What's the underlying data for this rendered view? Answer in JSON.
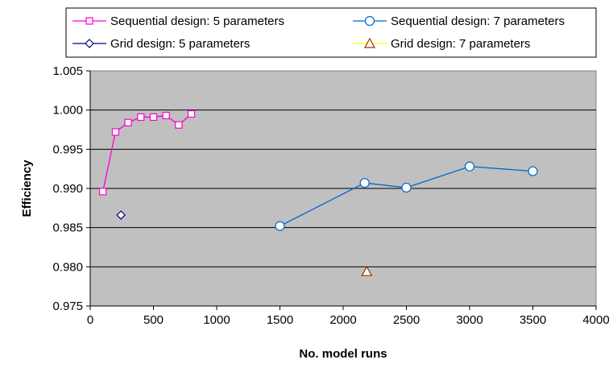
{
  "chart_data": {
    "type": "line",
    "title": "",
    "xlabel": "No. model runs",
    "ylabel": "Efficiency",
    "xlim": [
      0,
      4000
    ],
    "ylim": [
      0.975,
      1.005
    ],
    "xticks": [
      0,
      500,
      1000,
      1500,
      2000,
      2500,
      3000,
      3500,
      4000
    ],
    "xtick_labels": [
      "0",
      "500",
      "1000",
      "1500",
      "2000",
      "2500",
      "3000",
      "3500",
      "4000"
    ],
    "yticks": [
      0.975,
      0.98,
      0.985,
      0.99,
      0.995,
      1.0,
      1.005
    ],
    "ytick_labels": [
      "0.975",
      "0.980",
      "0.985",
      "0.990",
      "0.995",
      "1.000",
      "1.005"
    ],
    "grid": "horizontal",
    "plot_background": "#c0c0c0",
    "legend_position": "top",
    "series": [
      {
        "name": "Sequential design: 5 parameters",
        "marker": "square",
        "color": "#ff00cc",
        "fill": "#ffffff",
        "line": true,
        "x": [
          100,
          200,
          300,
          400,
          500,
          600,
          700,
          800
        ],
        "y": [
          0.9896,
          0.9972,
          0.9984,
          0.9991,
          0.9991,
          0.9993,
          0.9981,
          0.9995
        ]
      },
      {
        "name": "Sequential design: 7 parameters",
        "marker": "circle",
        "color": "#0066cc",
        "fill": "#ffffff",
        "line": true,
        "x": [
          1500,
          2170,
          2500,
          3000,
          3500
        ],
        "y": [
          0.9852,
          0.9907,
          0.9901,
          0.9928,
          0.9922
        ]
      },
      {
        "name": "Grid design: 5 parameters",
        "marker": "diamond",
        "color": "#000080",
        "fill": "#ffffff",
        "line": false,
        "x": [
          243
        ],
        "y": [
          0.9866
        ]
      },
      {
        "name": "Grid design: 7 parameters",
        "marker": "triangle",
        "color": "#993300",
        "fill": "#ffffff",
        "line": false,
        "x": [
          2187
        ],
        "y": [
          0.9794
        ]
      }
    ]
  }
}
